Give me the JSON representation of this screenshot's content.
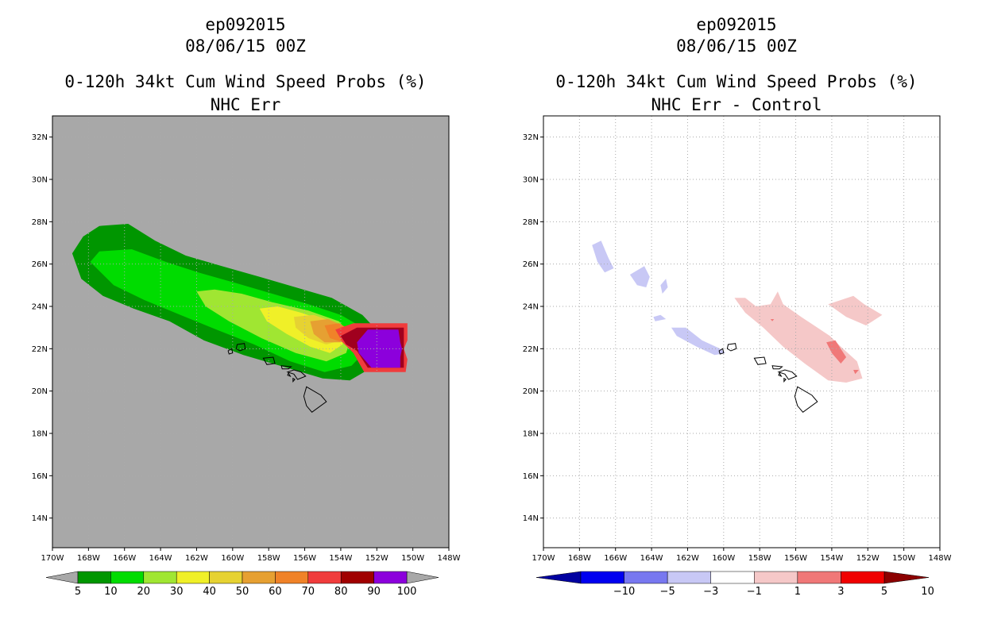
{
  "colors": {
    "background": "#ffffff",
    "left_map_bg": "#a8a8a8",
    "grid": "#aaaaaa",
    "coast": "#000000"
  },
  "panels": [
    {
      "title_line1": "ep092015",
      "title_line2": "08/06/15 00Z",
      "title_line3": "0-120h 34kt Cum Wind Speed Probs (%)",
      "title_line4": "NHC Err"
    },
    {
      "title_line1": "ep092015",
      "title_line2": "08/06/15 00Z",
      "title_line3": "0-120h 34kt Cum Wind Speed Probs (%)",
      "title_line4": "NHC Err - Control"
    }
  ],
  "chart_data": [
    {
      "type": "contour-map",
      "title": "0-120h 34kt Cum Wind Speed Probs (%)",
      "subtitle": "NHC Err",
      "storm": "ep092015",
      "valid": "08/06/15 00Z",
      "lon_range": [
        -170,
        -148
      ],
      "lat_range": [
        12.6,
        33
      ],
      "x_ticks": [
        "170W",
        "168W",
        "166W",
        "164W",
        "162W",
        "160W",
        "158W",
        "156W",
        "154W",
        "152W",
        "150W",
        "148W"
      ],
      "y_ticks": [
        "14N",
        "16N",
        "18N",
        "20N",
        "22N",
        "24N",
        "26N",
        "28N",
        "30N",
        "32N"
      ],
      "colorbar": {
        "labels": [
          "5",
          "10",
          "20",
          "30",
          "40",
          "50",
          "60",
          "70",
          "80",
          "90",
          "100"
        ],
        "colors": [
          "#009600",
          "#00dc00",
          "#a0e632",
          "#f0f028",
          "#e6d232",
          "#e6a032",
          "#f08228",
          "#f03c3c",
          "#a00000",
          "#8c00dc"
        ],
        "below_color": "#a8a8a8",
        "above_color": "#a8a8a8"
      },
      "contours": [
        {
          "level": 5,
          "color": "#009600",
          "polygon": [
            [
              -168.9,
              26.5
            ],
            [
              -168.3,
              27.3
            ],
            [
              -167.4,
              27.8
            ],
            [
              -165.8,
              27.9
            ],
            [
              -164.3,
              27.1
            ],
            [
              -162.6,
              26.4
            ],
            [
              -160.6,
              25.9
            ],
            [
              -158.5,
              25.4
            ],
            [
              -156.5,
              24.9
            ],
            [
              -154.5,
              24.4
            ],
            [
              -152.8,
              23.6
            ],
            [
              -151.8,
              22.7
            ],
            [
              -151.7,
              21.8
            ],
            [
              -152.5,
              21.0
            ],
            [
              -153.5,
              20.5
            ],
            [
              -155,
              20.6
            ],
            [
              -157,
              21.1
            ],
            [
              -159.4,
              21.7
            ],
            [
              -161.6,
              22.4
            ],
            [
              -163.5,
              23.3
            ],
            [
              -165.5,
              23.9
            ],
            [
              -167.2,
              24.5
            ],
            [
              -168.4,
              25.3
            ]
          ]
        },
        {
          "level": 10,
          "color": "#00dc00",
          "polygon": [
            [
              -167.9,
              26.1
            ],
            [
              -167.4,
              26.6
            ],
            [
              -165.6,
              26.7
            ],
            [
              -163.7,
              26.1
            ],
            [
              -161.9,
              25.6
            ],
            [
              -159.8,
              25.1
            ],
            [
              -157.8,
              24.6
            ],
            [
              -155.8,
              24.1
            ],
            [
              -154,
              23.6
            ],
            [
              -152.6,
              22.9
            ],
            [
              -152.4,
              22.1
            ],
            [
              -153.4,
              21.2
            ],
            [
              -154.9,
              20.9
            ],
            [
              -156.8,
              21.4
            ],
            [
              -158.8,
              22.2
            ],
            [
              -160.9,
              22.9
            ],
            [
              -162.9,
              23.6
            ],
            [
              -164.9,
              24.3
            ],
            [
              -166.6,
              25.0
            ]
          ]
        },
        {
          "level": 20,
          "color": "#a0e632",
          "polygon": [
            [
              -162,
              24.7
            ],
            [
              -161,
              24.8
            ],
            [
              -159.5,
              24.6
            ],
            [
              -157.8,
              24.2
            ],
            [
              -155.8,
              23.8
            ],
            [
              -154.1,
              23.3
            ],
            [
              -153.4,
              22.6
            ],
            [
              -153.7,
              21.8
            ],
            [
              -154.8,
              21.4
            ],
            [
              -156.5,
              21.8
            ],
            [
              -158.4,
              22.5
            ],
            [
              -160.2,
              23.3
            ],
            [
              -161.5,
              24.0
            ]
          ]
        },
        {
          "level": 30,
          "color": "#f0f028",
          "polygon": [
            [
              -158.5,
              23.9
            ],
            [
              -157.5,
              24.0
            ],
            [
              -156.2,
              23.7
            ],
            [
              -154.8,
              23.3
            ],
            [
              -153.9,
              22.8
            ],
            [
              -153.9,
              22.2
            ],
            [
              -154.6,
              21.8
            ],
            [
              -155.7,
              22.1
            ],
            [
              -157,
              22.7
            ],
            [
              -158.1,
              23.3
            ]
          ]
        },
        {
          "level": 40,
          "color": "#e6d232",
          "polygon": [
            [
              -156.6,
              23.5
            ],
            [
              -155.5,
              23.6
            ],
            [
              -154.5,
              23.3
            ],
            [
              -153.9,
              22.9
            ],
            [
              -154.0,
              22.4
            ],
            [
              -154.8,
              22.2
            ],
            [
              -155.8,
              22.5
            ],
            [
              -156.5,
              23.0
            ]
          ]
        },
        {
          "level": 50,
          "color": "#e6a032",
          "polygon": [
            [
              -155.7,
              23.3
            ],
            [
              -154.7,
              23.4
            ],
            [
              -153.9,
              23.1
            ],
            [
              -153.6,
              22.7
            ],
            [
              -154.0,
              22.3
            ],
            [
              -154.9,
              22.3
            ],
            [
              -155.5,
              22.7
            ]
          ]
        },
        {
          "level": 60,
          "color": "#f08228",
          "polygon": [
            [
              -154.9,
              23.1
            ],
            [
              -154.1,
              23.2
            ],
            [
              -153.5,
              22.9
            ],
            [
              -153.4,
              22.5
            ],
            [
              -153.9,
              22.3
            ],
            [
              -154.6,
              22.5
            ]
          ]
        },
        {
          "level": 70,
          "color": "#f03c3c",
          "polygon": [
            [
              -154.3,
              22.9
            ],
            [
              -153.3,
              23.2
            ],
            [
              -150.3,
              23.2
            ],
            [
              -150.3,
              22.4
            ],
            [
              -150.5,
              22.0
            ],
            [
              -150.3,
              21.5
            ],
            [
              -150.4,
              20.9
            ],
            [
              -152.7,
              20.9
            ],
            [
              -153.3,
              21.8
            ],
            [
              -153.9,
              22.3
            ]
          ]
        },
        {
          "level": 80,
          "color": "#a0001e",
          "polygon": [
            [
              -154.0,
              22.6
            ],
            [
              -153.1,
              23.0
            ],
            [
              -150.5,
              23.0
            ],
            [
              -150.5,
              21.1
            ],
            [
              -152.5,
              21.1
            ],
            [
              -153.1,
              21.9
            ],
            [
              -153.7,
              22.2
            ]
          ]
        },
        {
          "level": 90,
          "color": "#8c00dc",
          "polygon": [
            [
              -153.1,
              22.3
            ],
            [
              -152.5,
              22.9
            ],
            [
              -150.8,
              22.9
            ],
            [
              -150.7,
              22.3
            ],
            [
              -150.6,
              22.0
            ],
            [
              -150.7,
              21.6
            ],
            [
              -150.7,
              21.1
            ],
            [
              -152.3,
              21.1
            ],
            [
              -153.0,
              21.8
            ]
          ]
        }
      ]
    },
    {
      "type": "contour-map",
      "title": "0-120h 34kt Cum Wind Speed Probs (%)",
      "subtitle": "NHC Err - Control",
      "storm": "ep092015",
      "valid": "08/06/15 00Z",
      "lon_range": [
        -170,
        -148
      ],
      "lat_range": [
        12.6,
        33
      ],
      "x_ticks": [
        "170W",
        "168W",
        "166W",
        "164W",
        "162W",
        "160W",
        "158W",
        "156W",
        "154W",
        "152W",
        "150W",
        "148W"
      ],
      "y_ticks": [
        "14N",
        "16N",
        "18N",
        "20N",
        "22N",
        "24N",
        "26N",
        "28N",
        "30N",
        "32N"
      ],
      "colorbar": {
        "labels": [
          "-10",
          "-5",
          "-3",
          "-1",
          "1",
          "3",
          "5",
          "10"
        ],
        "colors": [
          "#0000f0",
          "#7878f0",
          "#c8c8f5",
          "#ffffff",
          "#f5c8c8",
          "#f07878",
          "#f00000"
        ],
        "below_color": "#0000a0",
        "above_color": "#8c0000"
      },
      "contours": [
        {
          "level": "-3..-1",
          "color": "#c8c8f5",
          "polygon": [
            [
              -167.3,
              26.9
            ],
            [
              -166.8,
              27.1
            ],
            [
              -166.4,
              26.3
            ],
            [
              -166.1,
              25.8
            ],
            [
              -166.6,
              25.6
            ],
            [
              -167.0,
              26.1
            ]
          ]
        },
        {
          "level": "-3..-1",
          "color": "#c8c8f5",
          "polygon": [
            [
              -165.2,
              25.5
            ],
            [
              -164.4,
              25.9
            ],
            [
              -164.1,
              25.4
            ],
            [
              -164.3,
              24.9
            ],
            [
              -164.8,
              25.0
            ]
          ]
        },
        {
          "level": "-3..-1",
          "color": "#c8c8f5",
          "polygon": [
            [
              -163.5,
              25.0
            ],
            [
              -163.2,
              25.3
            ],
            [
              -163.1,
              24.9
            ],
            [
              -163.4,
              24.6
            ]
          ]
        },
        {
          "level": "-3..-1",
          "color": "#c8c8f5",
          "polygon": [
            [
              -163.9,
              23.5
            ],
            [
              -163.5,
              23.6
            ],
            [
              -163.2,
              23.4
            ],
            [
              -163.8,
              23.3
            ]
          ]
        },
        {
          "level": "-3..-1",
          "color": "#c8c8f5",
          "polygon": [
            [
              -162.9,
              23.0
            ],
            [
              -162.1,
              23.0
            ],
            [
              -161.2,
              22.4
            ],
            [
              -160.2,
              22.0
            ],
            [
              -159.9,
              21.8
            ],
            [
              -160.5,
              21.7
            ],
            [
              -161.5,
              22.1
            ],
            [
              -162.6,
              22.6
            ]
          ]
        },
        {
          "level": "1..3",
          "color": "#f5c8c8",
          "polygon": [
            [
              -159.4,
              24.4
            ],
            [
              -158.8,
              24.4
            ],
            [
              -158.2,
              24.0
            ],
            [
              -157.4,
              24.1
            ],
            [
              -157.0,
              24.7
            ],
            [
              -156.7,
              24.1
            ],
            [
              -155.7,
              23.5
            ],
            [
              -154.8,
              23.0
            ],
            [
              -154.1,
              22.6
            ],
            [
              -153.5,
              22.1
            ],
            [
              -152.6,
              21.4
            ],
            [
              -152.3,
              20.6
            ],
            [
              -153.2,
              20.4
            ],
            [
              -154.2,
              20.5
            ],
            [
              -155.5,
              21.3
            ],
            [
              -156.7,
              22.1
            ],
            [
              -157.8,
              23.0
            ],
            [
              -158.8,
              23.7
            ]
          ]
        },
        {
          "level": "1..3",
          "color": "#f5c8c8",
          "polygon": [
            [
              -154.2,
              24.1
            ],
            [
              -152.8,
              24.5
            ],
            [
              -152.2,
              24.1
            ],
            [
              -151.2,
              23.6
            ],
            [
              -152.1,
              23.1
            ],
            [
              -153.2,
              23.5
            ]
          ]
        },
        {
          "level": "3..5",
          "color": "#f07878",
          "polygon": [
            [
              -154.3,
              22.3
            ],
            [
              -153.8,
              22.4
            ],
            [
              -153.2,
              21.6
            ],
            [
              -153.5,
              21.3
            ],
            [
              -154.0,
              21.8
            ]
          ]
        },
        {
          "level": "3..5",
          "color": "#f07878",
          "polygon": [
            [
              -157.4,
              23.4
            ],
            [
              -157.2,
              23.4
            ],
            [
              -157.3,
              23.3
            ]
          ]
        },
        {
          "level": "3..5",
          "color": "#f07878",
          "polygon": [
            [
              -152.8,
              21.0
            ],
            [
              -152.5,
              21.0
            ],
            [
              -152.7,
              20.8
            ]
          ]
        }
      ]
    }
  ]
}
